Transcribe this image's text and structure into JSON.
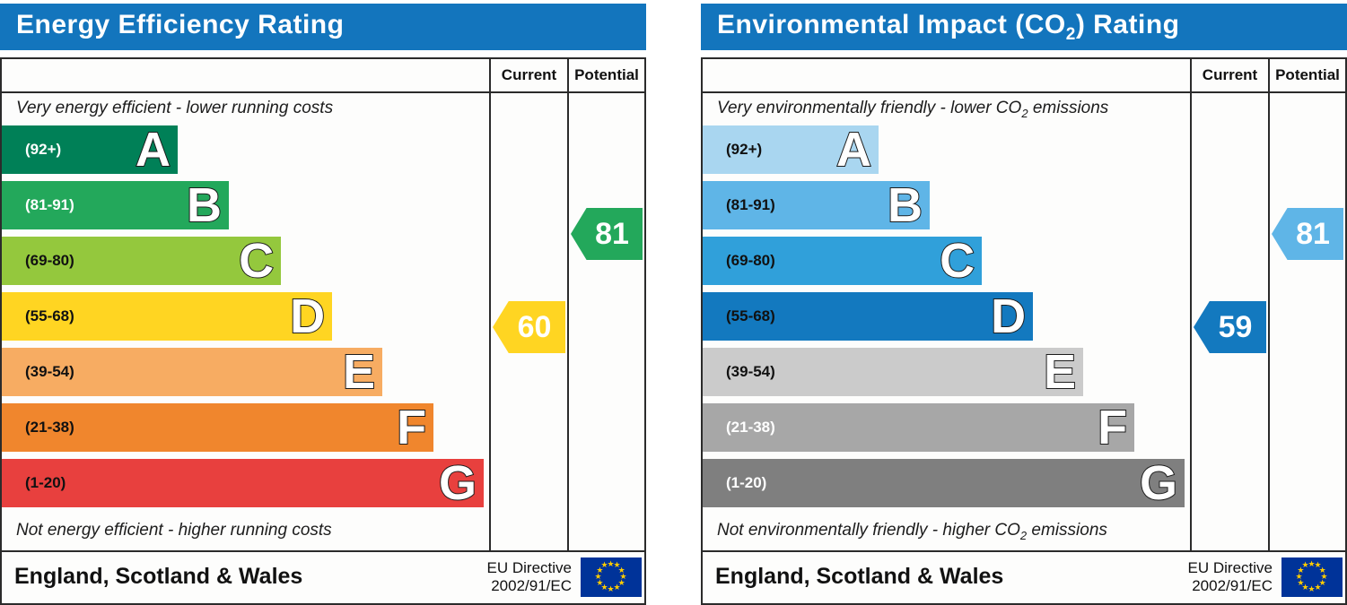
{
  "colors": {
    "header_bg": "#1375BD",
    "border": "#2B2B2B",
    "flag_bg": "#003399",
    "flag_star": "#FFCC00"
  },
  "panels": [
    {
      "title": {
        "pre": "Energy Efficiency Rating",
        "sub": "",
        "post": ""
      },
      "columns": {
        "current": "Current",
        "potential": "Potential"
      },
      "top_caption": {
        "pre": "Very energy efficient - lower running costs",
        "sub": "",
        "post": ""
      },
      "bottom_caption": {
        "pre": "Not energy efficient - higher running costs",
        "sub": "",
        "post": ""
      },
      "bands": [
        {
          "letter": "A",
          "range": "(92+)",
          "color": "#008057",
          "label_color": "#FFFFFF",
          "width_pct": 36.1
        },
        {
          "letter": "B",
          "range": "(81-91)",
          "color": "#23A85B",
          "label_color": "#FFFFFF",
          "width_pct": 46.6
        },
        {
          "letter": "C",
          "range": "(69-80)",
          "color": "#94C83D",
          "label_color": "#111111",
          "width_pct": 57.3
        },
        {
          "letter": "D",
          "range": "(55-68)",
          "color": "#FFD522",
          "label_color": "#111111",
          "width_pct": 67.8
        },
        {
          "letter": "E",
          "range": "(39-54)",
          "color": "#F7AC62",
          "label_color": "#111111",
          "width_pct": 78.1
        },
        {
          "letter": "F",
          "range": "(21-38)",
          "color": "#F0862D",
          "label_color": "#111111",
          "width_pct": 88.6
        },
        {
          "letter": "G",
          "range": "(1-20)",
          "color": "#E8403E",
          "label_color": "#111111",
          "width_pct": 98.9
        }
      ],
      "current": {
        "value": "60",
        "color": "#FFD522"
      },
      "potential": {
        "value": "81",
        "color": "#23A85B"
      },
      "footer": {
        "region": "England, Scotland & Wales",
        "directive_line1": "EU Directive",
        "directive_line2": "2002/91/EC"
      }
    },
    {
      "title": {
        "pre": "Environmental Impact (CO",
        "sub": "2",
        "post": ") Rating"
      },
      "columns": {
        "current": "Current",
        "potential": "Potential"
      },
      "top_caption": {
        "pre": "Very environmentally friendly - lower CO",
        "sub": "2",
        "post": " emissions"
      },
      "bottom_caption": {
        "pre": "Not environmentally friendly - higher CO",
        "sub": "2",
        "post": " emissions"
      },
      "bands": [
        {
          "letter": "A",
          "range": "(92+)",
          "color": "#A9D6F0",
          "label_color": "#111111",
          "width_pct": 36.1
        },
        {
          "letter": "B",
          "range": "(81-91)",
          "color": "#5FB5E7",
          "label_color": "#111111",
          "width_pct": 46.6
        },
        {
          "letter": "C",
          "range": "(69-80)",
          "color": "#30A0DA",
          "label_color": "#111111",
          "width_pct": 57.3
        },
        {
          "letter": "D",
          "range": "(55-68)",
          "color": "#1379BF",
          "label_color": "#111111",
          "width_pct": 67.8
        },
        {
          "letter": "E",
          "range": "(39-54)",
          "color": "#CBCBCB",
          "label_color": "#111111",
          "width_pct": 78.1
        },
        {
          "letter": "F",
          "range": "(21-38)",
          "color": "#A7A7A7",
          "label_color": "#FFFFFF",
          "width_pct": 88.6
        },
        {
          "letter": "G",
          "range": "(1-20)",
          "color": "#7F7F7F",
          "label_color": "#FFFFFF",
          "width_pct": 98.9
        }
      ],
      "current": {
        "value": "59",
        "color": "#1379BF"
      },
      "potential": {
        "value": "81",
        "color": "#5FB5E7"
      },
      "footer": {
        "region": "England, Scotland & Wales",
        "directive_line1": "EU Directive",
        "directive_line2": "2002/91/EC"
      }
    }
  ],
  "chart_data": [
    {
      "type": "bar",
      "title": "Energy Efficiency Rating",
      "categories": [
        "A (92+)",
        "B (81-91)",
        "C (69-80)",
        "D (55-68)",
        "E (39-54)",
        "F (21-38)",
        "G (1-20)"
      ],
      "band_colors": [
        "#008057",
        "#23A85B",
        "#94C83D",
        "#FFD522",
        "#F7AC62",
        "#F0862D",
        "#E8403E"
      ],
      "scale_range": [
        1,
        100
      ],
      "series": [
        {
          "name": "Current",
          "value": 60,
          "band": "D"
        },
        {
          "name": "Potential",
          "value": 81,
          "band": "B"
        }
      ],
      "top_note": "Very energy efficient - lower running costs",
      "bottom_note": "Not energy efficient - higher running costs",
      "footer": "England, Scotland & Wales | EU Directive 2002/91/EC"
    },
    {
      "type": "bar",
      "title": "Environmental Impact (CO2) Rating",
      "categories": [
        "A (92+)",
        "B (81-91)",
        "C (69-80)",
        "D (55-68)",
        "E (39-54)",
        "F (21-38)",
        "G (1-20)"
      ],
      "band_colors": [
        "#A9D6F0",
        "#5FB5E7",
        "#30A0DA",
        "#1379BF",
        "#CBCBCB",
        "#A7A7A7",
        "#7F7F7F"
      ],
      "scale_range": [
        1,
        100
      ],
      "series": [
        {
          "name": "Current",
          "value": 59,
          "band": "D"
        },
        {
          "name": "Potential",
          "value": 81,
          "band": "B"
        }
      ],
      "top_note": "Very environmentally friendly - lower CO2 emissions",
      "bottom_note": "Not environmentally friendly - higher CO2 emissions",
      "footer": "England, Scotland & Wales | EU Directive 2002/91/EC"
    }
  ]
}
